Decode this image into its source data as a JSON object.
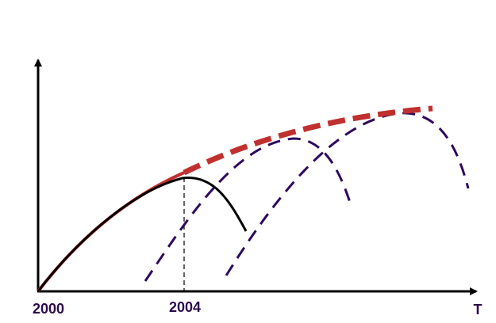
{
  "axis_labels": {
    "x_start": "2000",
    "x_mid": "2004",
    "x_axis": "T"
  }
}
